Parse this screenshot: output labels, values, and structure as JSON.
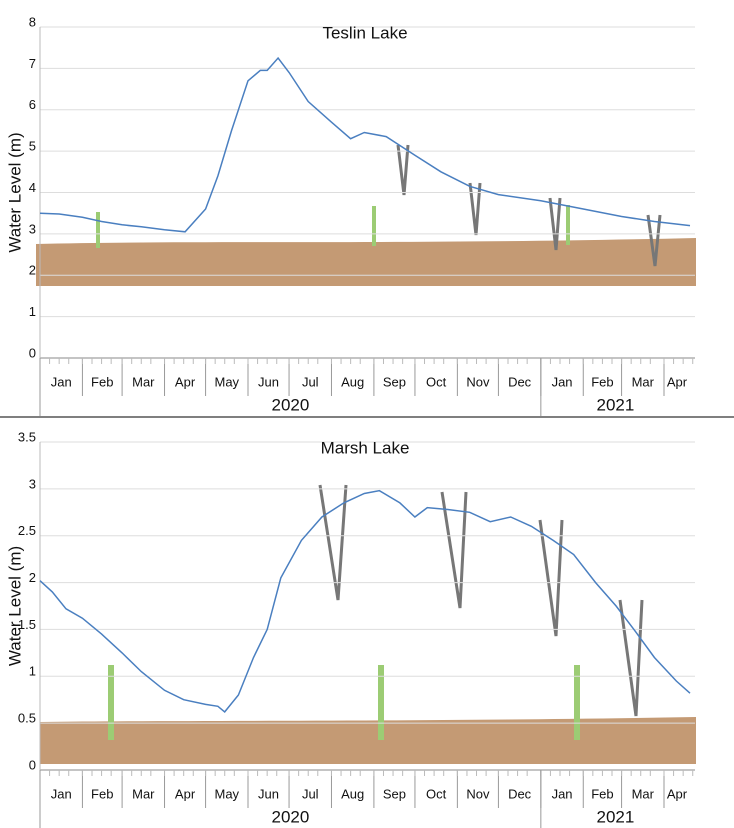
{
  "chart_data": [
    {
      "type": "line",
      "title": "Teslin Lake",
      "y_label": "Water Level (m)",
      "color": "#4a7fc0",
      "x": [
        "2020-01-01",
        "2020-01-15",
        "2020-02-01",
        "2020-02-15",
        "2020-03-01",
        "2020-03-15",
        "2020-04-01",
        "2020-04-16",
        "2020-05-01",
        "2020-05-10",
        "2020-05-20",
        "2020-06-01",
        "2020-06-10",
        "2020-06-15",
        "2020-06-23",
        "2020-07-01",
        "2020-07-15",
        "2020-08-01",
        "2020-08-15",
        "2020-08-25",
        "2020-09-10",
        "2020-10-01",
        "2020-10-20",
        "2020-11-10",
        "2020-12-01",
        "2021-01-01",
        "2021-02-01",
        "2021-03-01",
        "2021-03-25",
        "2021-04-20"
      ],
      "values": [
        3.5,
        3.48,
        3.4,
        3.3,
        3.22,
        3.17,
        3.1,
        3.05,
        3.6,
        4.4,
        5.5,
        6.7,
        6.95,
        6.95,
        7.25,
        6.9,
        6.2,
        5.7,
        5.3,
        5.45,
        5.35,
        4.9,
        4.5,
        4.15,
        3.95,
        3.8,
        3.6,
        3.42,
        3.3,
        3.2
      ],
      "xlim": [
        "2020-01-01",
        "2021-04-20"
      ],
      "ylim": [
        0,
        8
      ],
      "yticks": [
        0,
        1,
        2,
        3,
        4,
        5,
        6,
        7,
        8
      ],
      "grid": true,
      "x_month_labels": [
        "Jan",
        "Feb",
        "Mar",
        "Apr",
        "May",
        "Jun",
        "Jul",
        "Aug",
        "Sep",
        "Oct",
        "Nov",
        "Dec",
        "Jan",
        "Feb",
        "Mar",
        "Apr"
      ],
      "x_year_labels": [
        "2020",
        "2021"
      ]
    },
    {
      "type": "line",
      "title": "Marsh Lake",
      "y_label": "Water Level (m)",
      "color": "#4a7fc0",
      "x": [
        "2020-01-01",
        "2020-01-10",
        "2020-01-20",
        "2020-02-01",
        "2020-02-15",
        "2020-03-01",
        "2020-03-15",
        "2020-04-01",
        "2020-04-15",
        "2020-05-01",
        "2020-05-10",
        "2020-05-15",
        "2020-05-25",
        "2020-06-05",
        "2020-06-15",
        "2020-06-25",
        "2020-07-10",
        "2020-07-25",
        "2020-08-10",
        "2020-08-25",
        "2020-09-05",
        "2020-09-20",
        "2020-10-01",
        "2020-10-10",
        "2020-10-25",
        "2020-11-10",
        "2020-11-25",
        "2020-12-10",
        "2020-12-25",
        "2021-01-10",
        "2021-01-25",
        "2021-02-10",
        "2021-02-25",
        "2021-03-10",
        "2021-03-25",
        "2021-04-10",
        "2021-04-20"
      ],
      "values": [
        2.02,
        1.9,
        1.72,
        1.62,
        1.45,
        1.25,
        1.05,
        0.85,
        0.75,
        0.7,
        0.68,
        0.62,
        0.8,
        1.2,
        1.5,
        2.05,
        2.45,
        2.7,
        2.85,
        2.95,
        2.98,
        2.85,
        2.7,
        2.8,
        2.78,
        2.75,
        2.65,
        2.7,
        2.6,
        2.45,
        2.3,
        2.0,
        1.75,
        1.5,
        1.2,
        0.95,
        0.82
      ],
      "xlim": [
        "2020-01-01",
        "2021-04-20"
      ],
      "ylim": [
        0,
        3.5
      ],
      "yticks": [
        0,
        0.5,
        1,
        1.5,
        2,
        2.5,
        3,
        3.5
      ],
      "grid": true,
      "x_month_labels": [
        "Jan",
        "Feb",
        "Mar",
        "Apr",
        "May",
        "Jun",
        "Jul",
        "Aug",
        "Sep",
        "Oct",
        "Nov",
        "Dec",
        "Jan",
        "Feb",
        "Mar",
        "Apr"
      ],
      "x_year_labels": [
        "2020",
        "2021"
      ]
    }
  ]
}
